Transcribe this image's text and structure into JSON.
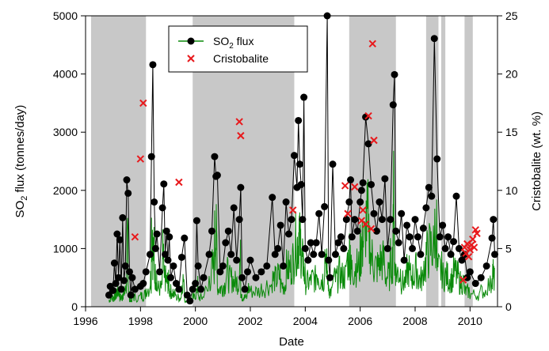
{
  "chart_data": {
    "type": "line",
    "title": "",
    "xlabel": "Date",
    "ylabel_left": "SO",
    "ylabel_left_sub": "2",
    "ylabel_left_rest": " flux (tonnes/day)",
    "ylabel_right": "Cristobalite (wt. %)",
    "xlim": [
      1996,
      2011
    ],
    "ylim_left": [
      0,
      5000
    ],
    "ylim_right": [
      0,
      25
    ],
    "x_ticks": [
      1996,
      1998,
      2000,
      2002,
      2004,
      2006,
      2008,
      2010
    ],
    "x_tick_labels": [
      "1996",
      "1998",
      "2000",
      "2002",
      "2004",
      "2006",
      "2008",
      "2010"
    ],
    "y_left_ticks": [
      0,
      1000,
      2000,
      3000,
      4000,
      5000
    ],
    "y_left_tick_labels": [
      "0",
      "1000",
      "2000",
      "3000",
      "4000",
      "5000"
    ],
    "y_right_ticks": [
      0,
      5,
      10,
      15,
      20,
      25
    ],
    "y_right_tick_labels": [
      "0",
      "5",
      "10",
      "15",
      "20",
      "25"
    ],
    "grid": false,
    "legend_position": "top-center",
    "legend": {
      "so2_label_main": "SO",
      "so2_label_sub": "2",
      "so2_label_rest": " flux",
      "cristobalite_label": "Cristobalite"
    },
    "colors": {
      "shade": "#c8c8c8",
      "so2_line": "#0a8a0a",
      "so2_marker": "#000000",
      "cristobalite": "#e8191c"
    },
    "shaded_periods": [
      [
        1996.2,
        1998.2
      ],
      [
        1999.9,
        2003.6
      ],
      [
        2005.6,
        2007.3
      ],
      [
        2008.4,
        2008.85
      ],
      [
        2008.95,
        2009.1
      ],
      [
        2009.8,
        2010.1
      ]
    ],
    "series": [
      {
        "name": "SO2 flux",
        "axis": "left",
        "kind": "line-markers",
        "points": [
          [
            1996.85,
            200
          ],
          [
            1996.9,
            350
          ],
          [
            1997.0,
            280
          ],
          [
            1997.05,
            750
          ],
          [
            1997.1,
            400
          ],
          [
            1997.15,
            1250
          ],
          [
            1997.2,
            500
          ],
          [
            1997.25,
            1150
          ],
          [
            1997.3,
            300
          ],
          [
            1997.35,
            1530
          ],
          [
            1997.4,
            450
          ],
          [
            1997.45,
            700
          ],
          [
            1997.5,
            2180
          ],
          [
            1997.55,
            1950
          ],
          [
            1997.6,
            600
          ],
          [
            1997.65,
            200
          ],
          [
            1997.7,
            500
          ],
          [
            1997.8,
            300
          ],
          [
            1998.0,
            350
          ],
          [
            1998.1,
            400
          ],
          [
            1998.2,
            600
          ],
          [
            1998.35,
            900
          ],
          [
            1998.4,
            2580
          ],
          [
            1998.45,
            4160
          ],
          [
            1998.5,
            1800
          ],
          [
            1998.55,
            1000
          ],
          [
            1998.6,
            1250
          ],
          [
            1998.7,
            600
          ],
          [
            1998.8,
            1700
          ],
          [
            1998.85,
            2110
          ],
          [
            1998.9,
            900
          ],
          [
            1998.95,
            1300
          ],
          [
            1999.0,
            800
          ],
          [
            1999.05,
            1200
          ],
          [
            1999.1,
            500
          ],
          [
            1999.2,
            700
          ],
          [
            1999.3,
            400
          ],
          [
            1999.4,
            300
          ],
          [
            1999.5,
            850
          ],
          [
            1999.6,
            1180
          ],
          [
            1999.7,
            200
          ],
          [
            1999.8,
            100
          ],
          [
            1999.9,
            300
          ],
          [
            2000.0,
            400
          ],
          [
            2000.05,
            1480
          ],
          [
            2000.1,
            700
          ],
          [
            2000.2,
            300
          ],
          [
            2000.3,
            500
          ],
          [
            2000.5,
            900
          ],
          [
            2000.6,
            1300
          ],
          [
            2000.7,
            2580
          ],
          [
            2000.75,
            2240
          ],
          [
            2000.8,
            2260
          ],
          [
            2000.9,
            600
          ],
          [
            2001.0,
            700
          ],
          [
            2001.1,
            1100
          ],
          [
            2001.2,
            1300
          ],
          [
            2001.3,
            900
          ],
          [
            2001.4,
            1700
          ],
          [
            2001.5,
            800
          ],
          [
            2001.6,
            1500
          ],
          [
            2001.65,
            2050
          ],
          [
            2001.7,
            500
          ],
          [
            2001.8,
            300
          ],
          [
            2001.9,
            600
          ],
          [
            2002.0,
            800
          ],
          [
            2002.2,
            500
          ],
          [
            2002.4,
            600
          ],
          [
            2002.6,
            700
          ],
          [
            2002.8,
            1880
          ],
          [
            2002.9,
            900
          ],
          [
            2003.0,
            1000
          ],
          [
            2003.1,
            1400
          ],
          [
            2003.2,
            700
          ],
          [
            2003.3,
            1800
          ],
          [
            2003.4,
            1250
          ],
          [
            2003.5,
            1500
          ],
          [
            2003.6,
            2600
          ],
          [
            2003.7,
            2050
          ],
          [
            2003.75,
            3200
          ],
          [
            2003.8,
            2450
          ],
          [
            2003.85,
            2100
          ],
          [
            2003.9,
            1500
          ],
          [
            2003.95,
            3600
          ],
          [
            2004.0,
            1000
          ],
          [
            2004.1,
            800
          ],
          [
            2004.2,
            1100
          ],
          [
            2004.3,
            900
          ],
          [
            2004.4,
            1100
          ],
          [
            2004.5,
            1600
          ],
          [
            2004.6,
            900
          ],
          [
            2004.7,
            1720
          ],
          [
            2004.8,
            5000
          ],
          [
            2004.85,
            800
          ],
          [
            2004.9,
            500
          ],
          [
            2005.0,
            2450
          ],
          [
            2005.1,
            900
          ],
          [
            2005.2,
            1100
          ],
          [
            2005.3,
            1200
          ],
          [
            2005.4,
            1000
          ],
          [
            2005.5,
            1500
          ],
          [
            2005.6,
            1800
          ],
          [
            2005.65,
            2180
          ],
          [
            2005.7,
            1200
          ],
          [
            2005.8,
            1500
          ],
          [
            2005.9,
            1300
          ],
          [
            2006.0,
            1800
          ],
          [
            2006.05,
            2000
          ],
          [
            2006.1,
            2130
          ],
          [
            2006.2,
            3260
          ],
          [
            2006.3,
            2800
          ],
          [
            2006.4,
            2100
          ],
          [
            2006.5,
            1600
          ],
          [
            2006.6,
            1300
          ],
          [
            2006.7,
            1800
          ],
          [
            2006.8,
            1500
          ],
          [
            2006.9,
            2200
          ],
          [
            2007.0,
            1000
          ],
          [
            2007.1,
            1500
          ],
          [
            2007.2,
            3470
          ],
          [
            2007.25,
            3990
          ],
          [
            2007.3,
            1300
          ],
          [
            2007.4,
            1100
          ],
          [
            2007.5,
            1600
          ],
          [
            2007.6,
            800
          ],
          [
            2007.7,
            1400
          ],
          [
            2007.8,
            1200
          ],
          [
            2007.9,
            1000
          ],
          [
            2008.0,
            1500
          ],
          [
            2008.1,
            1200
          ],
          [
            2008.2,
            900
          ],
          [
            2008.3,
            1350
          ],
          [
            2008.4,
            1700
          ],
          [
            2008.5,
            2050
          ],
          [
            2008.6,
            1900
          ],
          [
            2008.7,
            4610
          ],
          [
            2008.8,
            2540
          ],
          [
            2008.9,
            1200
          ],
          [
            2009.0,
            1400
          ],
          [
            2009.1,
            1000
          ],
          [
            2009.2,
            1200
          ],
          [
            2009.3,
            900
          ],
          [
            2009.4,
            1120
          ],
          [
            2009.5,
            1900
          ],
          [
            2009.6,
            1000
          ],
          [
            2009.7,
            800
          ],
          [
            2009.8,
            900
          ],
          [
            2009.9,
            500
          ],
          [
            2010.0,
            600
          ],
          [
            2010.2,
            400
          ],
          [
            2010.4,
            500
          ],
          [
            2010.6,
            700
          ],
          [
            2010.8,
            1180
          ],
          [
            2010.85,
            1500
          ],
          [
            2010.9,
            900
          ]
        ]
      },
      {
        "name": "Cristobalite",
        "axis": "right",
        "kind": "scatter",
        "points": [
          [
            1997.8,
            6.0
          ],
          [
            1998.0,
            12.7
          ],
          [
            1998.1,
            17.5
          ],
          [
            1999.4,
            10.7
          ],
          [
            2001.6,
            15.9
          ],
          [
            2001.65,
            14.7
          ],
          [
            2003.55,
            8.3
          ],
          [
            2005.45,
            10.4
          ],
          [
            2005.55,
            8.0
          ],
          [
            2005.8,
            10.3
          ],
          [
            2006.05,
            7.4
          ],
          [
            2006.1,
            8.3
          ],
          [
            2006.2,
            7.1
          ],
          [
            2006.3,
            16.4
          ],
          [
            2006.4,
            6.7
          ],
          [
            2006.45,
            22.6
          ],
          [
            2006.5,
            14.3
          ],
          [
            2009.75,
            2.3
          ],
          [
            2009.8,
            5.1
          ],
          [
            2009.85,
            4.6
          ],
          [
            2009.9,
            5.4
          ],
          [
            2009.95,
            4.3
          ],
          [
            2010.0,
            4.9
          ],
          [
            2010.05,
            5.3
          ],
          [
            2010.1,
            5.8
          ],
          [
            2010.15,
            5.1
          ],
          [
            2010.2,
            6.6
          ],
          [
            2010.25,
            6.3
          ]
        ]
      }
    ]
  }
}
